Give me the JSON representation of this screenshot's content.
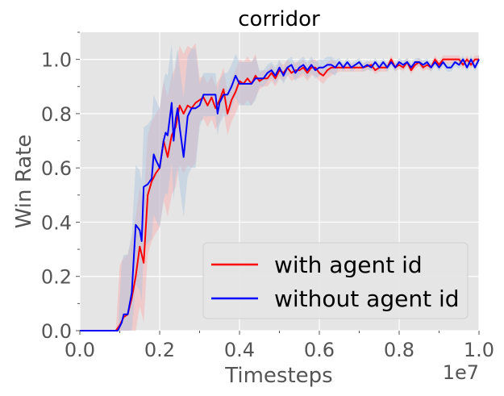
{
  "chart_data": {
    "type": "line",
    "title": "corridor",
    "xlabel": "Timesteps",
    "ylabel": "Win Rate",
    "x_offset_label": "1e7",
    "xlim": [
      0.0,
      1.0
    ],
    "ylim": [
      0.0,
      1.1
    ],
    "xticks": [
      "0.0",
      "0.2",
      "0.4",
      "0.6",
      "0.8",
      "1.0"
    ],
    "xtick_values": [
      0.0,
      0.2,
      0.4,
      0.6,
      0.8,
      1.0
    ],
    "yticks": [
      "0.0",
      "0.2",
      "0.4",
      "0.6",
      "0.8",
      "1.0"
    ],
    "ytick_values": [
      0.0,
      0.2,
      0.4,
      0.6,
      0.8,
      1.0
    ],
    "grid": true,
    "legend_position": "lower-right",
    "background_color": "#e5e5e5",
    "series": [
      {
        "name": "with agent id",
        "color": "#ff0000",
        "band_color": "#ff9999",
        "points": [
          [
            0.0,
            0.0
          ],
          [
            0.02,
            0.0
          ],
          [
            0.04,
            0.0
          ],
          [
            0.06,
            0.0
          ],
          [
            0.08,
            0.0
          ],
          [
            0.09,
            0.0
          ],
          [
            0.1,
            0.02
          ],
          [
            0.11,
            0.05
          ],
          [
            0.12,
            0.06
          ],
          [
            0.13,
            0.12
          ],
          [
            0.14,
            0.2
          ],
          [
            0.15,
            0.31
          ],
          [
            0.16,
            0.25
          ],
          [
            0.17,
            0.5
          ],
          [
            0.18,
            0.55
          ],
          [
            0.19,
            0.58
          ],
          [
            0.2,
            0.6
          ],
          [
            0.21,
            0.7
          ],
          [
            0.22,
            0.64
          ],
          [
            0.23,
            0.72
          ],
          [
            0.24,
            0.75
          ],
          [
            0.25,
            0.83
          ],
          [
            0.26,
            0.8
          ],
          [
            0.27,
            0.83
          ],
          [
            0.28,
            0.82
          ],
          [
            0.29,
            0.84
          ],
          [
            0.3,
            0.85
          ],
          [
            0.31,
            0.86
          ],
          [
            0.32,
            0.83
          ],
          [
            0.33,
            0.86
          ],
          [
            0.34,
            0.82
          ],
          [
            0.35,
            0.85
          ],
          [
            0.36,
            0.89
          ],
          [
            0.37,
            0.8
          ],
          [
            0.38,
            0.85
          ],
          [
            0.39,
            0.88
          ],
          [
            0.4,
            0.92
          ],
          [
            0.41,
            0.91
          ],
          [
            0.42,
            0.93
          ],
          [
            0.43,
            0.91
          ],
          [
            0.44,
            0.94
          ],
          [
            0.45,
            0.92
          ],
          [
            0.46,
            0.93
          ],
          [
            0.47,
            0.93
          ],
          [
            0.48,
            0.95
          ],
          [
            0.49,
            0.93
          ],
          [
            0.5,
            0.96
          ],
          [
            0.51,
            0.95
          ],
          [
            0.52,
            0.97
          ],
          [
            0.53,
            0.95
          ],
          [
            0.54,
            0.96
          ],
          [
            0.55,
            0.96
          ],
          [
            0.56,
            0.97
          ],
          [
            0.57,
            0.95
          ],
          [
            0.58,
            0.97
          ],
          [
            0.59,
            0.97
          ],
          [
            0.6,
            0.95
          ],
          [
            0.61,
            0.94
          ],
          [
            0.62,
            0.96
          ],
          [
            0.63,
            0.97
          ],
          [
            0.65,
            0.97
          ],
          [
            0.67,
            0.97
          ],
          [
            0.69,
            0.97
          ],
          [
            0.71,
            0.97
          ],
          [
            0.73,
            0.98
          ],
          [
            0.74,
            0.96
          ],
          [
            0.75,
            0.97
          ],
          [
            0.77,
            0.97
          ],
          [
            0.78,
            1.0
          ],
          [
            0.79,
            0.97
          ],
          [
            0.8,
            0.98
          ],
          [
            0.81,
            0.97
          ],
          [
            0.82,
            0.99
          ],
          [
            0.83,
            0.96
          ],
          [
            0.84,
            0.98
          ],
          [
            0.85,
            0.99
          ],
          [
            0.86,
            0.97
          ],
          [
            0.87,
            0.98
          ],
          [
            0.88,
            0.97
          ],
          [
            0.89,
            1.0
          ],
          [
            0.9,
            0.98
          ],
          [
            0.91,
            1.0
          ],
          [
            0.92,
            1.0
          ],
          [
            0.93,
            1.0
          ],
          [
            0.94,
            1.0
          ],
          [
            0.95,
            1.0
          ],
          [
            0.96,
            0.98
          ],
          [
            0.97,
            1.0
          ],
          [
            0.98,
            0.98
          ],
          [
            0.99,
            1.0
          ],
          [
            1.0,
            1.0
          ]
        ]
      },
      {
        "name": "without agent id",
        "color": "#0000ff",
        "band_color": "#a9c4dd",
        "points": [
          [
            0.0,
            0.0
          ],
          [
            0.02,
            0.0
          ],
          [
            0.04,
            0.0
          ],
          [
            0.06,
            0.0
          ],
          [
            0.08,
            0.0
          ],
          [
            0.095,
            0.0
          ],
          [
            0.105,
            0.03
          ],
          [
            0.11,
            0.06
          ],
          [
            0.12,
            0.06
          ],
          [
            0.13,
            0.14
          ],
          [
            0.14,
            0.39
          ],
          [
            0.15,
            0.37
          ],
          [
            0.155,
            0.33
          ],
          [
            0.16,
            0.53
          ],
          [
            0.17,
            0.54
          ],
          [
            0.18,
            0.56
          ],
          [
            0.185,
            0.65
          ],
          [
            0.19,
            0.63
          ],
          [
            0.2,
            0.6
          ],
          [
            0.21,
            0.7
          ],
          [
            0.215,
            0.73
          ],
          [
            0.22,
            0.72
          ],
          [
            0.23,
            0.84
          ],
          [
            0.235,
            0.7
          ],
          [
            0.24,
            0.78
          ],
          [
            0.245,
            0.82
          ],
          [
            0.25,
            0.75
          ],
          [
            0.26,
            0.64
          ],
          [
            0.27,
            0.79
          ],
          [
            0.28,
            0.82
          ],
          [
            0.29,
            0.82
          ],
          [
            0.3,
            0.83
          ],
          [
            0.31,
            0.87
          ],
          [
            0.32,
            0.87
          ],
          [
            0.33,
            0.87
          ],
          [
            0.34,
            0.87
          ],
          [
            0.345,
            0.8
          ],
          [
            0.35,
            0.84
          ],
          [
            0.36,
            0.87
          ],
          [
            0.37,
            0.87
          ],
          [
            0.38,
            0.9
          ],
          [
            0.39,
            0.94
          ],
          [
            0.4,
            0.91
          ],
          [
            0.41,
            0.91
          ],
          [
            0.42,
            0.91
          ],
          [
            0.43,
            0.91
          ],
          [
            0.44,
            0.93
          ],
          [
            0.45,
            0.93
          ],
          [
            0.46,
            0.93
          ],
          [
            0.47,
            0.95
          ],
          [
            0.48,
            0.96
          ],
          [
            0.49,
            0.94
          ],
          [
            0.5,
            0.97
          ],
          [
            0.51,
            0.94
          ],
          [
            0.52,
            0.97
          ],
          [
            0.53,
            0.98
          ],
          [
            0.54,
            0.95
          ],
          [
            0.55,
            0.97
          ],
          [
            0.56,
            0.98
          ],
          [
            0.57,
            0.96
          ],
          [
            0.58,
            0.98
          ],
          [
            0.59,
            0.96
          ],
          [
            0.6,
            0.97
          ],
          [
            0.61,
            0.97
          ],
          [
            0.62,
            0.98
          ],
          [
            0.63,
            0.98
          ],
          [
            0.64,
            0.97
          ],
          [
            0.65,
            0.99
          ],
          [
            0.66,
            0.97
          ],
          [
            0.67,
            0.99
          ],
          [
            0.68,
            0.97
          ],
          [
            0.69,
            0.98
          ],
          [
            0.7,
            0.99
          ],
          [
            0.71,
            0.97
          ],
          [
            0.72,
            0.98
          ],
          [
            0.73,
            0.97
          ],
          [
            0.74,
            0.99
          ],
          [
            0.75,
            0.97
          ],
          [
            0.76,
            0.99
          ],
          [
            0.77,
            0.97
          ],
          [
            0.78,
            0.99
          ],
          [
            0.79,
            0.97
          ],
          [
            0.8,
            0.99
          ],
          [
            0.81,
            0.98
          ],
          [
            0.82,
            0.99
          ],
          [
            0.83,
            0.97
          ],
          [
            0.84,
            0.99
          ],
          [
            0.85,
            0.99
          ],
          [
            0.86,
            0.98
          ],
          [
            0.87,
            0.99
          ],
          [
            0.88,
            0.97
          ],
          [
            0.89,
            0.99
          ],
          [
            0.9,
            0.97
          ],
          [
            0.91,
            0.99
          ],
          [
            0.92,
            0.97
          ],
          [
            0.93,
            0.97
          ],
          [
            0.94,
            0.99
          ],
          [
            0.95,
            0.98
          ],
          [
            0.96,
            1.0
          ],
          [
            0.97,
            0.97
          ],
          [
            0.98,
            1.0
          ],
          [
            0.99,
            0.97
          ],
          [
            1.0,
            1.0
          ]
        ]
      }
    ]
  }
}
